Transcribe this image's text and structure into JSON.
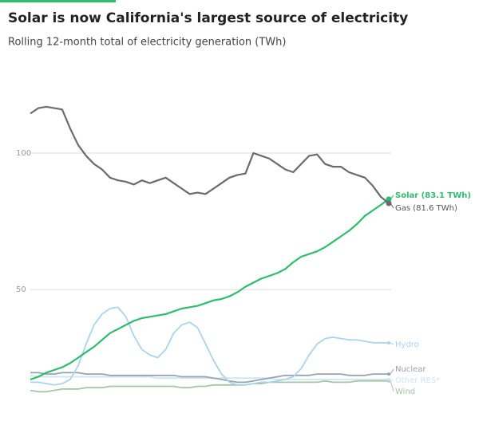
{
  "chart_data": {
    "type": "line",
    "title": "Solar is now California's largest source of electricity",
    "subtitle": "Rolling 12-month total of electricity generation (TWh)",
    "categories": [
      null,
      null,
      null,
      null,
      null,
      null,
      null,
      null,
      null,
      null,
      null,
      null,
      null,
      null,
      null,
      null,
      null,
      null,
      null,
      null,
      null,
      null,
      null,
      null,
      null,
      null,
      null,
      null,
      null,
      null,
      null,
      null,
      null,
      null,
      null,
      null,
      null,
      null,
      null,
      null,
      null,
      null,
      null,
      null,
      null,
      null
    ],
    "ylim": [
      5,
      125
    ],
    "yticks": [
      50,
      100
    ],
    "grid": true,
    "series": [
      {
        "name": "Gas (81.6 TWh)",
        "color": "#6b6b6b",
        "values": [
          114.5,
          116.5,
          117,
          116.5,
          116,
          109,
          103,
          99,
          96,
          94,
          91,
          90,
          89.5,
          88.5,
          90,
          89,
          90,
          91,
          89,
          87,
          85,
          85.5,
          85,
          87,
          89,
          91,
          92,
          92.5,
          100,
          99,
          98,
          96,
          94,
          93,
          96,
          99,
          99.5,
          96,
          95,
          95,
          93,
          92,
          91,
          88,
          84,
          81.6
        ]
      },
      {
        "name": "Solar (83.1 TWh)",
        "color": "#2dbd6e",
        "values": [
          17,
          18,
          19.5,
          20.5,
          21.5,
          23,
          25,
          27,
          29,
          31.5,
          34,
          35.5,
          37,
          38.5,
          39.5,
          40,
          40.5,
          41,
          42,
          43,
          43.5,
          44,
          45,
          46,
          46.5,
          47.5,
          49,
          51,
          52.5,
          54,
          55,
          56,
          57.5,
          60,
          62,
          63,
          64,
          65.5,
          67.5,
          69.5,
          71.5,
          74,
          77,
          79,
          81,
          83.1
        ]
      },
      {
        "name": "Hydro",
        "color": "#a9d4ee",
        "values": [
          16,
          16,
          15.5,
          15,
          15.5,
          17,
          22,
          30,
          37,
          41,
          43,
          43.5,
          40,
          33,
          28,
          26,
          25,
          28,
          34,
          37,
          38,
          36,
          30,
          24,
          19,
          16,
          15,
          15,
          15.5,
          16,
          16,
          16.5,
          17,
          18,
          21,
          26,
          30,
          32,
          32.5,
          32,
          31.5,
          31.5,
          31,
          30.5,
          30.5,
          30.4
        ]
      },
      {
        "name": "Nuclear",
        "color": "#98a3b0",
        "values": [
          19.5,
          19.5,
          19,
          19,
          19.5,
          19.5,
          19.5,
          19,
          19,
          19,
          18.5,
          18.5,
          18.5,
          18.5,
          18.5,
          18.5,
          18.5,
          18.5,
          18.5,
          18,
          18,
          18,
          18,
          17.5,
          17,
          16.5,
          16,
          16,
          16.5,
          17,
          17.5,
          18,
          18.5,
          18.5,
          18.5,
          18.5,
          19,
          19,
          19,
          19,
          18.5,
          18.5,
          18.5,
          19,
          19,
          19
        ]
      },
      {
        "name": "Other RES*",
        "color": "#cde5f3",
        "values": [
          18.5,
          18,
          18,
          18,
          18,
          18,
          18,
          18,
          18,
          18,
          18,
          18,
          18,
          18,
          18,
          18,
          17.5,
          17.5,
          17.5,
          17.5,
          17.5,
          17.5,
          17.5,
          17.5,
          17.5,
          17.5,
          17.5,
          17.5,
          17.5,
          17.5,
          17.5,
          17,
          17,
          17,
          17,
          17,
          17,
          17,
          17,
          17,
          17,
          17,
          17,
          17,
          17,
          17
        ]
      },
      {
        "name": "Wind",
        "color": "#a6c4a6",
        "values": [
          13,
          12.5,
          12.5,
          13,
          13.5,
          13.5,
          13.5,
          14,
          14,
          14,
          14.5,
          14.5,
          14.5,
          14.5,
          14.5,
          14.5,
          14.5,
          14.5,
          14.5,
          14,
          14,
          14.5,
          14.5,
          15,
          15,
          15,
          15,
          15,
          15.5,
          15.5,
          16,
          16,
          16,
          16,
          16,
          16,
          16,
          16.5,
          16,
          16,
          16,
          16.5,
          16.5,
          16.5,
          16.5,
          16.5
        ]
      }
    ]
  }
}
